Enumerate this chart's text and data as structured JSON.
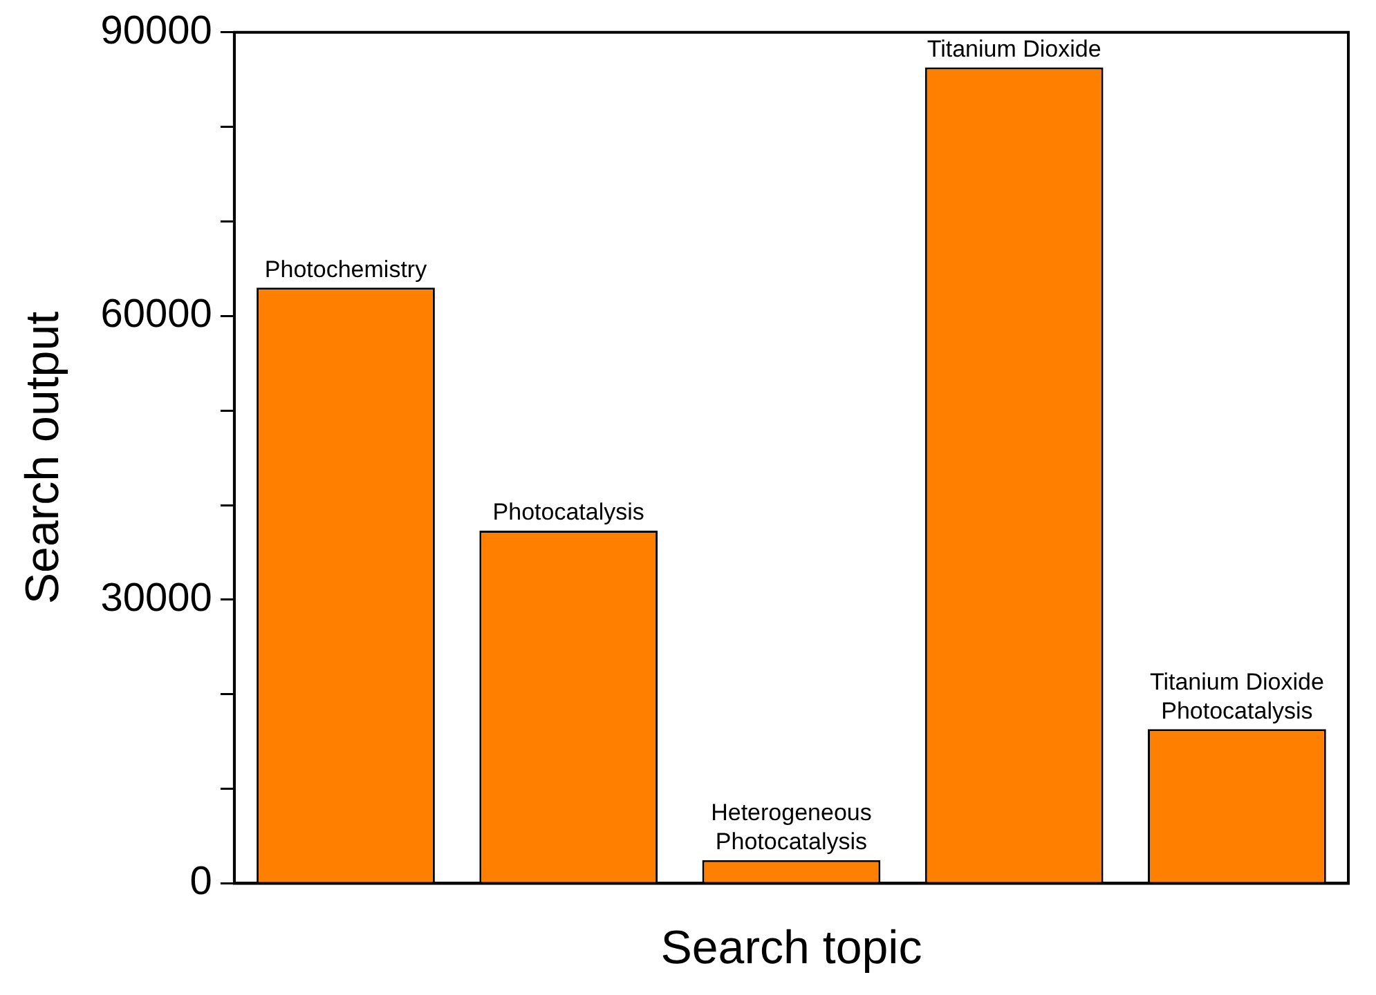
{
  "chart_data": {
    "type": "bar",
    "xlabel": "Search topic",
    "ylabel": "Search output",
    "categories": [
      "Photochemistry",
      "Photocatalysis",
      "Heterogeneous Photocatalysis",
      "Titanium Dioxide",
      "Titanium Dioxide Photocatalysis"
    ],
    "values": [
      63000,
      37300,
      2450,
      86300,
      16300
    ],
    "color": "#ff8000",
    "ylim": [
      0,
      90000
    ],
    "yticks": [
      0,
      {
        "value": 10000,
        "label": null
      },
      {
        "value": 20000,
        "label": null
      },
      30000,
      {
        "value": 40000,
        "label": null
      },
      {
        "value": 50000,
        "label": null
      },
      60000,
      {
        "value": 70000,
        "label": null
      },
      {
        "value": 80000,
        "label": null
      },
      90000
    ],
    "tick_labels": "y",
    "grid": false,
    "legend": false
  }
}
